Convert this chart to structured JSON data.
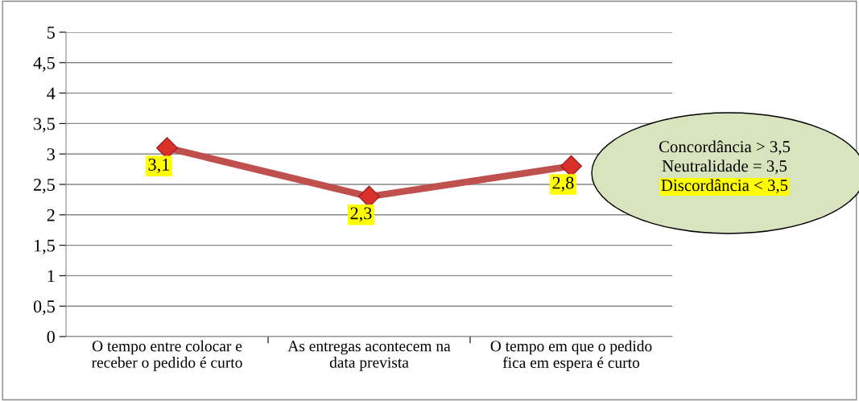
{
  "chart_data": {
    "type": "line",
    "categories": [
      "O tempo entre colocar e\nreceber o pedido é curto",
      "As entregas acontecem na\ndata prevista",
      "O tempo em que o pedido\nfica em espera é curto"
    ],
    "series": [
      {
        "color": "#c0504d",
        "values": [
          3.1,
          2.3,
          2.8
        ],
        "value_labels": [
          "3,1",
          "2,3",
          "2,8"
        ]
      }
    ],
    "ylim": [
      0,
      5
    ],
    "yticks": [
      0,
      {
        "value": 0.5,
        "label": "0,5"
      },
      1,
      {
        "value": 1.5,
        "label": "1,5"
      },
      2,
      {
        "value": 2.5,
        "label": "2,5"
      },
      3,
      {
        "value": 3.5,
        "label": "3,5"
      },
      4,
      {
        "value": 4.5,
        "label": "4,5"
      },
      5
    ],
    "grid": "y",
    "marker": "diamond",
    "line_style": "solid",
    "legend": false,
    "annotations": [
      "Concordância > 3,5",
      "Neutralidade = 3,5",
      "Discordância < 3,5"
    ]
  }
}
